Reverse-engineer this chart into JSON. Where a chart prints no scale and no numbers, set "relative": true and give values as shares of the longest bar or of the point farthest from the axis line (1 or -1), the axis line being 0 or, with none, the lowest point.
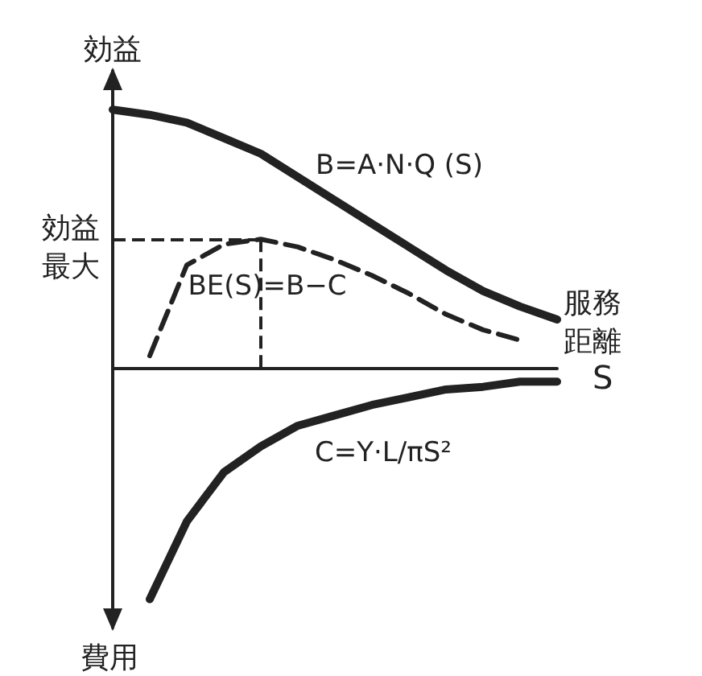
{
  "chart_data": {
    "type": "line",
    "relative": true,
    "ylabel": "効益",
    "xlabel": "S",
    "annotations": [
      "服務距離",
      "費用"
    ],
    "categories": [
      null,
      null,
      null,
      null,
      null,
      null,
      null,
      null,
      null,
      null,
      null,
      null,
      null
    ],
    "series": [
      {
        "name": "B=A·N·Q (S)",
        "color": "#222222",
        "line_style": "solid",
        "values": [
          1,
          0.98,
          0.95,
          0.89,
          0.83,
          0.74,
          0.65,
          0.56,
          0.47,
          0.38,
          0.3,
          0.24,
          0.19
        ]
      },
      {
        "name": "BE(S)=B−C",
        "color": "#222222",
        "line_style": "dashed",
        "values": [
          null,
          0.05,
          0.4,
          0.48,
          0.5,
          0.47,
          0.42,
          0.36,
          0.29,
          0.21,
          0.15,
          0.11,
          null
        ]
      },
      {
        "name": "C=Y·L/πS²",
        "color": "#222222",
        "line_style": "solid",
        "values": [
          null,
          -0.89,
          -0.59,
          -0.4,
          -0.3,
          -0.22,
          -0.18,
          -0.14,
          -0.11,
          -0.08,
          -0.07,
          -0.05,
          -0.05
        ]
      }
    ],
    "ref_lines": [
      {
        "axis": "y",
        "value": 0.5,
        "label": "効益最大",
        "line_style": "dashed"
      }
    ],
    "grid": false,
    "legend": false,
    "marker": "none"
  }
}
